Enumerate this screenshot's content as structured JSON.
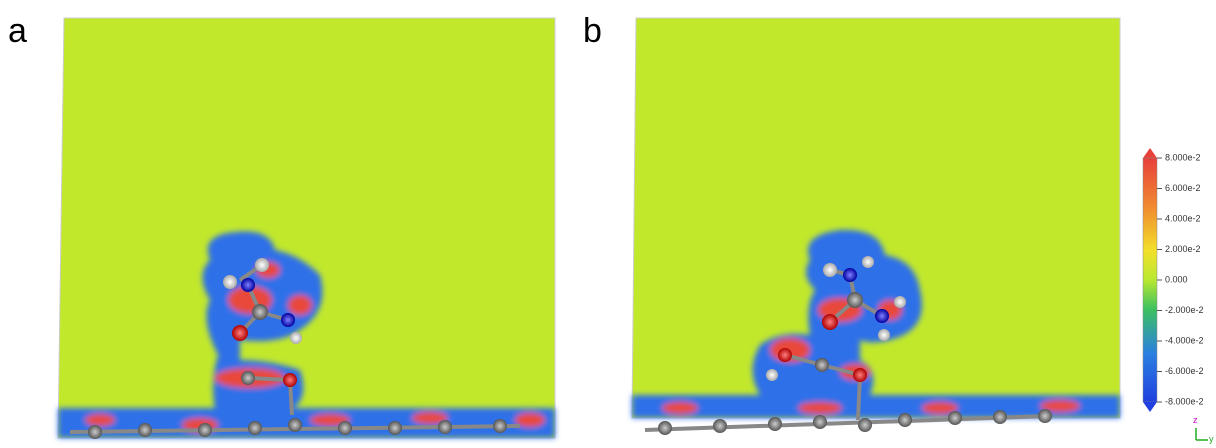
{
  "panels": [
    {
      "label": "a"
    },
    {
      "label": "b"
    }
  ],
  "colorbar": {
    "lim": [
      -0.08,
      0.08
    ],
    "ticks": [
      {
        "value": 0.08,
        "label": "8.000e-2"
      },
      {
        "value": 0.06,
        "label": "6.000e-2"
      },
      {
        "value": 0.04,
        "label": "4.000e-2"
      },
      {
        "value": 0.02,
        "label": "2.000e-2"
      },
      {
        "value": 0,
        "label": "0.000"
      },
      {
        "value": -0.02,
        "label": "-2.000e-2"
      },
      {
        "value": -0.04,
        "label": "-4.000e-2"
      },
      {
        "value": -0.06,
        "label": "-6.000e-2"
      },
      {
        "value": -0.08,
        "label": "-8.000e-2"
      }
    ]
  },
  "axes_labels": {
    "z": "z",
    "y": "y"
  }
}
